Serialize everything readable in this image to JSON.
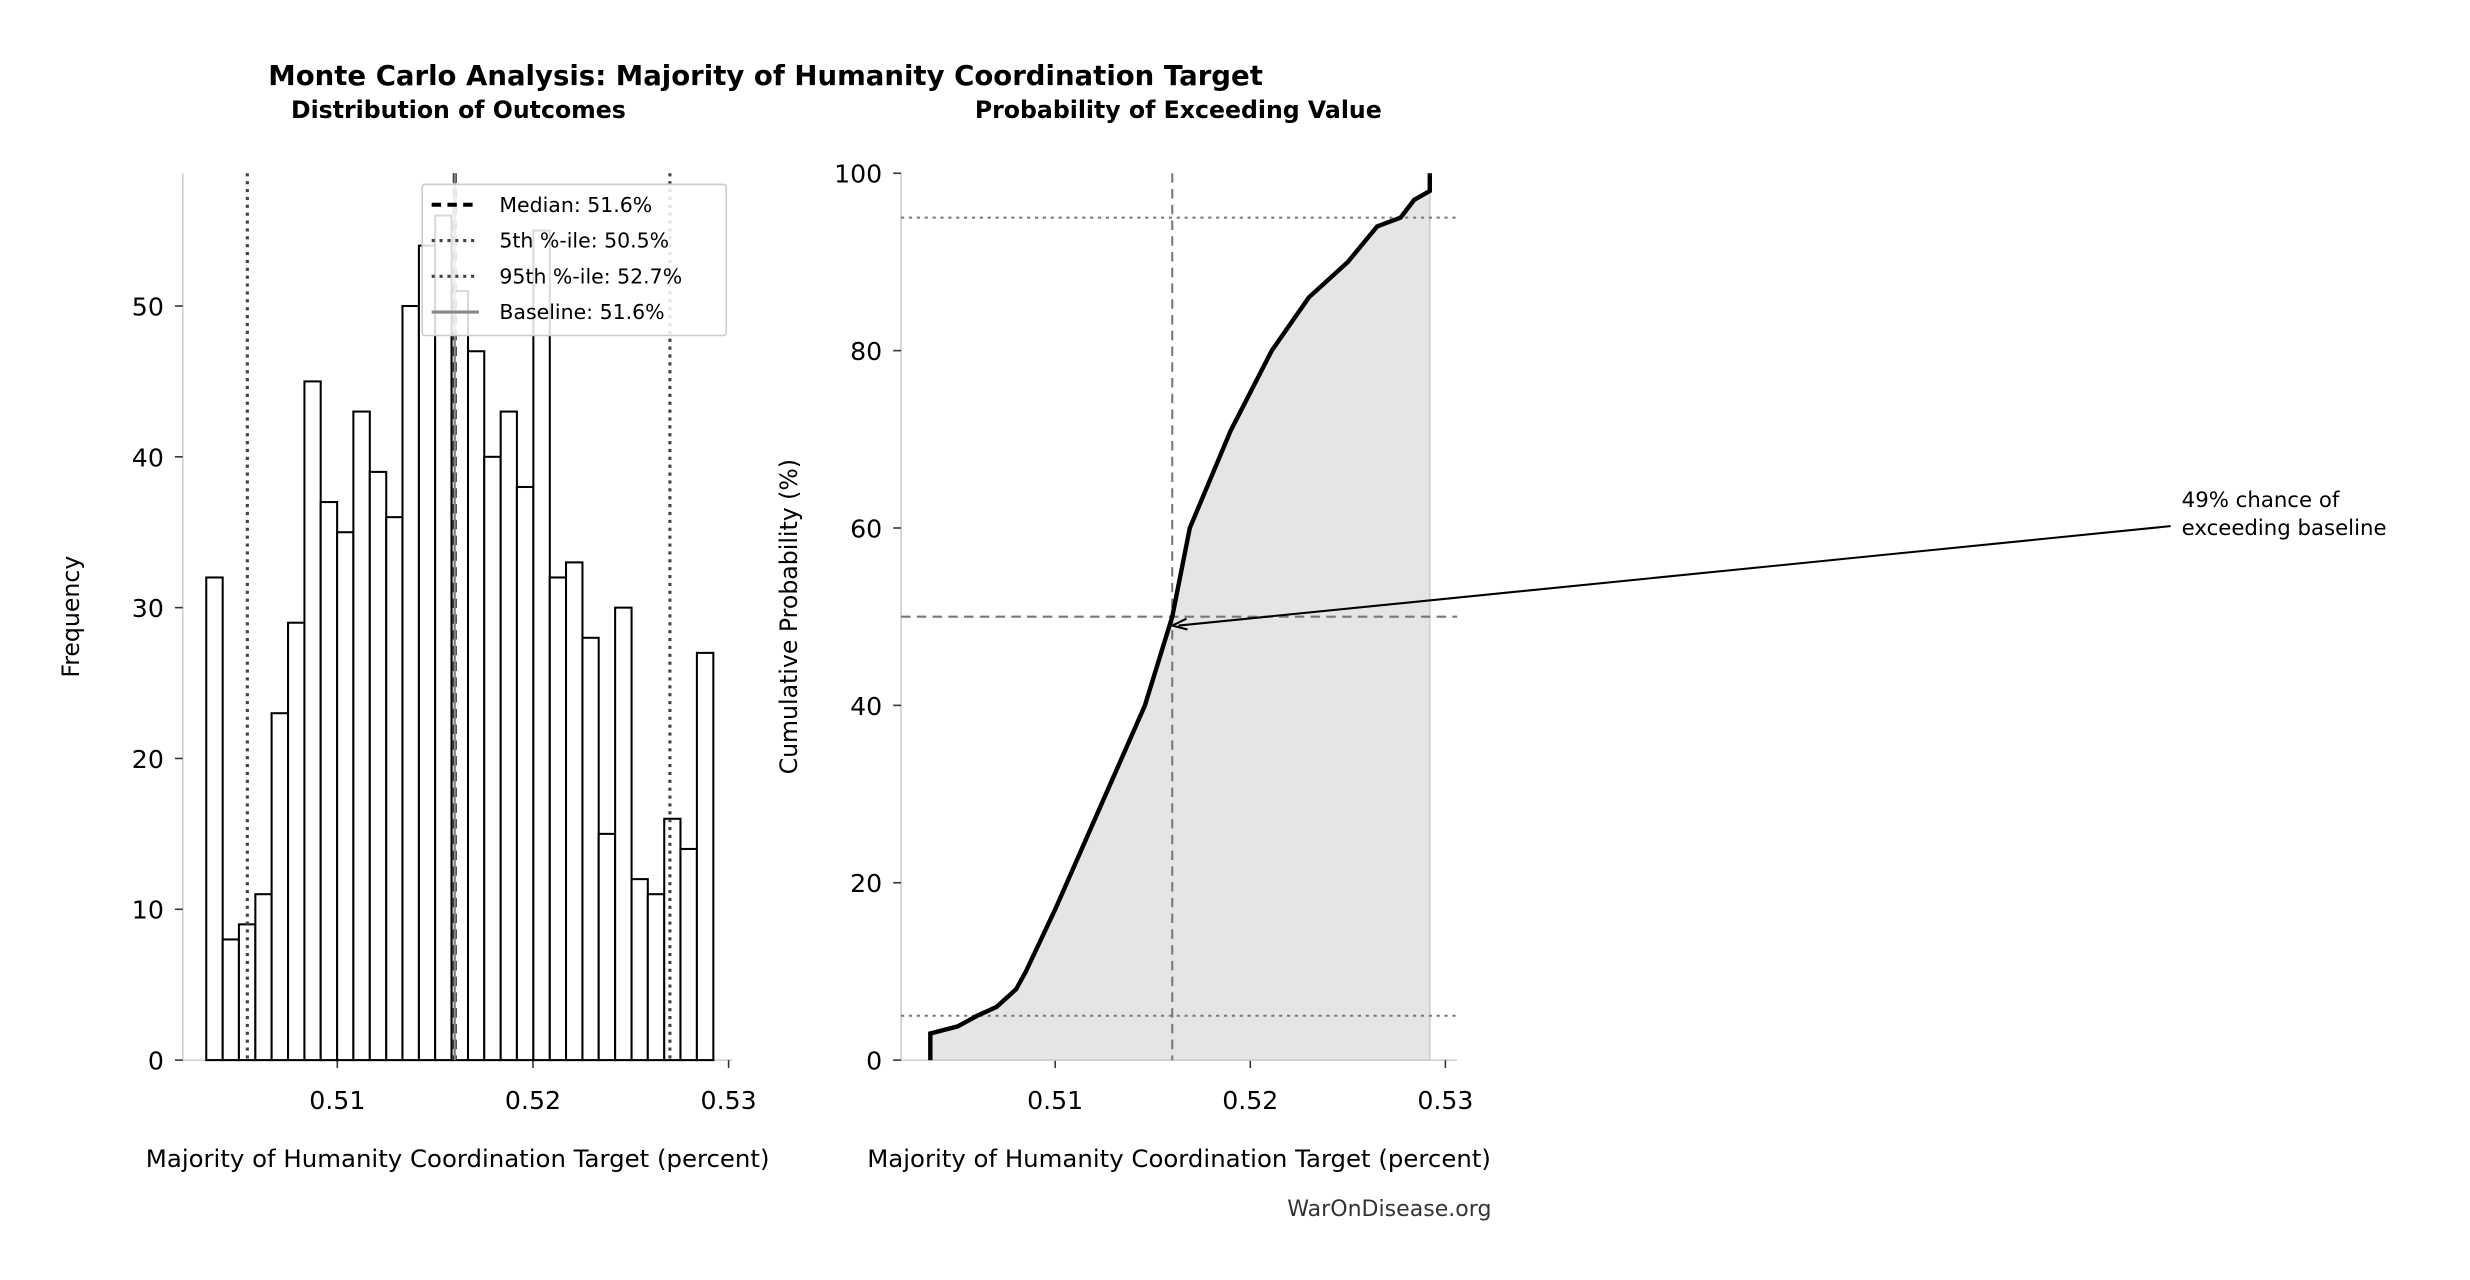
{
  "title": "Monte Carlo Analysis: Majority of Humanity Coordination Target",
  "footer": "WarOnDisease.org",
  "chart_data": [
    {
      "type": "histogram",
      "title": "Distribution of Outcomes",
      "xlabel": "Majority of Humanity Coordination Target (percent)",
      "ylabel": "Frequency",
      "bins": [
        0.5033,
        0.50414,
        0.50497,
        0.50581,
        0.50664,
        0.50748,
        0.50832,
        0.50915,
        0.50999,
        0.51082,
        0.51166,
        0.5125,
        0.51333,
        0.51417,
        0.515,
        0.51584,
        0.51668,
        0.51751,
        0.51835,
        0.51918,
        0.52002,
        0.52086,
        0.52169,
        0.52253,
        0.52336,
        0.5242,
        0.52504,
        0.52587,
        0.52671,
        0.52754,
        0.52838,
        0.52922
      ],
      "values": [
        32,
        8,
        9,
        11,
        23,
        29,
        45,
        37,
        35,
        43,
        39,
        36,
        50,
        54,
        56,
        51,
        47,
        40,
        43,
        38,
        55,
        32,
        33,
        28,
        15,
        30,
        12,
        11,
        16,
        14,
        27
      ],
      "color": "#ffffff",
      "edgecolor": "#000000",
      "xlim": [
        0.5021,
        0.5302
      ],
      "ylim": [
        0,
        58.8
      ],
      "xticks": [
        0.51,
        0.52,
        0.53
      ],
      "yticks": [
        0,
        10,
        20,
        30,
        40,
        50
      ],
      "lines": [
        {
          "name": "Median: 51.6%",
          "x": 0.516,
          "style": "dashed",
          "color": "#000000"
        },
        {
          "name": "5th %-ile: 50.5%",
          "x": 0.5054,
          "style": "dotted",
          "color": "#444444"
        },
        {
          "name": "95th %-ile: 52.7%",
          "x": 0.527,
          "style": "dotted",
          "color": "#444444"
        },
        {
          "name": "Baseline: 51.6%",
          "x": 0.516,
          "style": "solid",
          "color": "#888888"
        }
      ],
      "legend": "upper right"
    },
    {
      "type": "line",
      "title": "Probability of Exceeding Value",
      "xlabel": "Majority of Humanity Coordination Target (percent)",
      "ylabel": "Cumulative Probability (%)",
      "x": [
        0.5036,
        0.5036,
        0.505,
        0.506,
        0.507,
        0.508,
        0.5085,
        0.51,
        0.511,
        0.513,
        0.5146,
        0.516,
        0.5169,
        0.519,
        0.5211,
        0.523,
        0.525,
        0.5265,
        0.5277,
        0.5284,
        0.5292,
        0.5292
      ],
      "values": [
        0,
        3,
        3.8,
        5,
        6,
        8,
        10,
        17,
        22,
        32,
        40,
        50,
        60,
        71,
        80,
        86,
        90,
        94,
        95,
        97,
        98,
        100
      ],
      "color": "#000000",
      "fill": "#e5e5e5",
      "xlim": [
        0.5021,
        0.5306
      ],
      "ylim": [
        0,
        100
      ],
      "xticks": [
        0.51,
        0.52,
        0.53
      ],
      "yticks": [
        0,
        20,
        40,
        60,
        80,
        100
      ],
      "hlines": [
        {
          "y": 5,
          "style": "dotted"
        },
        {
          "y": 95,
          "style": "dotted"
        },
        {
          "y": 50,
          "style": "dashed"
        }
      ],
      "vlines": [
        {
          "x": 0.516,
          "style": "dashed"
        }
      ],
      "annotation": {
        "text": [
          "49% chance of",
          "exceeding baseline"
        ],
        "xy": [
          0.516,
          49
        ]
      }
    }
  ]
}
